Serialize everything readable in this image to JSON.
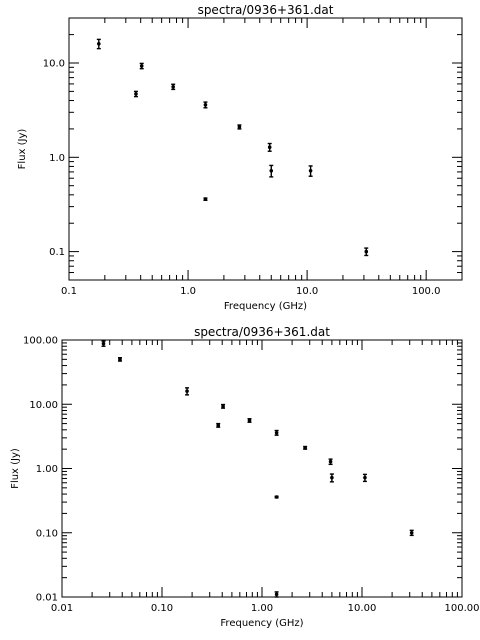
{
  "chart_data": [
    {
      "type": "scatter",
      "title": "spectra/0936+361.dat",
      "xlabel": "Frequency (GHz)",
      "ylabel": "Flux (Jy)",
      "xscale": "log",
      "yscale": "log",
      "xlim": [
        0.1,
        200
      ],
      "ylim": [
        0.05,
        30
      ],
      "xticks": [
        {
          "v": 0.1,
          "label": "0.1"
        },
        {
          "v": 1,
          "label": "1.0"
        },
        {
          "v": 10,
          "label": "10.0"
        },
        {
          "v": 100,
          "label": "100.0"
        }
      ],
      "yticks": [
        {
          "v": 0.1,
          "label": "0.1"
        },
        {
          "v": 1,
          "label": "1.0"
        },
        {
          "v": 10,
          "label": "10.0"
        }
      ],
      "grid": false,
      "points": [
        {
          "x": 0.178,
          "y": 16.0,
          "err": 1.8
        },
        {
          "x": 0.365,
          "y": 4.7,
          "err": 0.3
        },
        {
          "x": 0.408,
          "y": 9.3,
          "err": 0.6
        },
        {
          "x": 0.75,
          "y": 5.6,
          "err": 0.35
        },
        {
          "x": 1.4,
          "y": 3.6,
          "err": 0.25
        },
        {
          "x": 1.4,
          "y": 0.36,
          "err": 0.01
        },
        {
          "x": 2.7,
          "y": 2.1,
          "err": 0.1
        },
        {
          "x": 4.85,
          "y": 1.28,
          "err": 0.12
        },
        {
          "x": 5.0,
          "y": 0.72,
          "err": 0.1
        },
        {
          "x": 10.7,
          "y": 0.72,
          "err": 0.09
        },
        {
          "x": 31.4,
          "y": 0.1,
          "err": 0.009
        }
      ]
    },
    {
      "type": "scatter",
      "title": "spectra/0936+361.dat",
      "xlabel": "Frequency (GHz)",
      "ylabel": "Flux (Jy)",
      "xscale": "log",
      "yscale": "log",
      "xlim": [
        0.01,
        100
      ],
      "ylim": [
        0.01,
        100
      ],
      "xticks": [
        {
          "v": 0.01,
          "label": "0.01"
        },
        {
          "v": 0.1,
          "label": "0.10"
        },
        {
          "v": 1,
          "label": "1.00"
        },
        {
          "v": 10,
          "label": "10.00"
        },
        {
          "v": 100,
          "label": "100.00"
        }
      ],
      "yticks": [
        {
          "v": 0.01,
          "label": "0.01"
        },
        {
          "v": 0.1,
          "label": "0.10"
        },
        {
          "v": 1,
          "label": "1.00"
        },
        {
          "v": 10,
          "label": "10.00"
        },
        {
          "v": 100,
          "label": "100.00"
        }
      ],
      "grid": false,
      "points": [
        {
          "x": 0.026,
          "y": 88.0,
          "err": 8.0
        },
        {
          "x": 0.038,
          "y": 50.0,
          "err": 3.0
        },
        {
          "x": 0.178,
          "y": 16.0,
          "err": 2.0
        },
        {
          "x": 0.365,
          "y": 4.7,
          "err": 0.3
        },
        {
          "x": 0.408,
          "y": 9.3,
          "err": 0.6
        },
        {
          "x": 0.75,
          "y": 5.6,
          "err": 0.35
        },
        {
          "x": 1.4,
          "y": 3.6,
          "err": 0.3
        },
        {
          "x": 1.4,
          "y": 0.36,
          "err": 0.01
        },
        {
          "x": 1.4,
          "y": 0.011,
          "err": 0.001
        },
        {
          "x": 2.7,
          "y": 2.1,
          "err": 0.1
        },
        {
          "x": 4.85,
          "y": 1.28,
          "err": 0.12
        },
        {
          "x": 5.0,
          "y": 0.72,
          "err": 0.1
        },
        {
          "x": 10.7,
          "y": 0.72,
          "err": 0.09
        },
        {
          "x": 31.4,
          "y": 0.1,
          "err": 0.009
        }
      ]
    }
  ]
}
